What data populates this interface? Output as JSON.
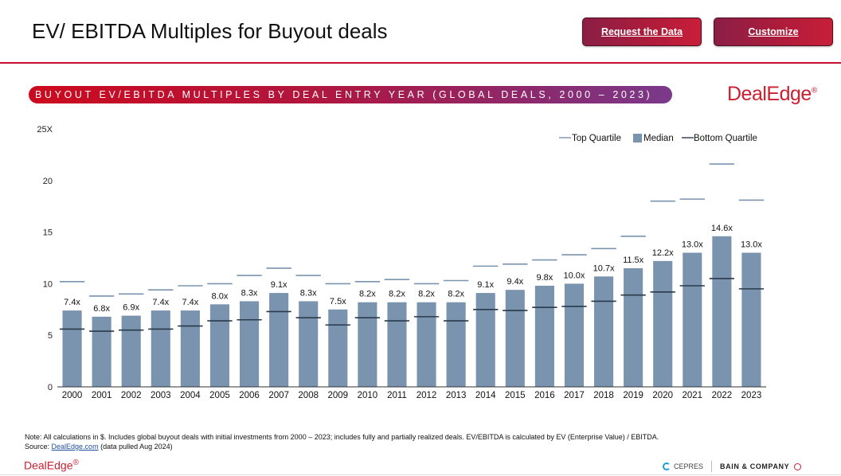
{
  "header": {
    "title": "EV/ EBITDA Multiples for Buyout deals",
    "request_label": "Request the Data",
    "customize_label": "Customize"
  },
  "banner": {
    "text": "BUYOUT EV/EBITDA MULTIPLES BY DEAL ENTRY YEAR (GLOBAL DEALS, 2000 – 2023)"
  },
  "brand": {
    "logo_text": "DealEdge",
    "logo_mark": "®"
  },
  "colors": {
    "bar": "#7a93ae",
    "quartile_top": "#7a93ae",
    "quartile_bottom": "#2b3a4a",
    "accent_red": "#c8102e"
  },
  "chart_data": {
    "type": "bar",
    "title": "BUYOUT EV/EBITDA MULTIPLES BY DEAL ENTRY YEAR (GLOBAL DEALS, 2000 – 2023)",
    "xlabel": "",
    "ylabel": "",
    "ylim": [
      0,
      25
    ],
    "y_ticks": [
      "0",
      "5",
      "10",
      "15",
      "20",
      "25X"
    ],
    "grid": false,
    "legend_position": "top-right",
    "categories": [
      "2000",
      "2001",
      "2002",
      "2003",
      "2004",
      "2005",
      "2006",
      "2007",
      "2008",
      "2009",
      "2010",
      "2011",
      "2012",
      "2013",
      "2014",
      "2015",
      "2016",
      "2017",
      "2018",
      "2019",
      "2020",
      "2021",
      "2022",
      "2023"
    ],
    "series": [
      {
        "name": "Top Quartile",
        "kind": "marker",
        "values": [
          10.2,
          8.8,
          9.0,
          9.4,
          9.8,
          10.0,
          10.8,
          11.5,
          10.8,
          10.0,
          10.2,
          10.4,
          10.0,
          10.3,
          11.7,
          11.9,
          12.3,
          12.8,
          13.4,
          14.6,
          18.0,
          18.2,
          21.6,
          18.1
        ]
      },
      {
        "name": "Median",
        "kind": "bar",
        "values": [
          7.4,
          6.8,
          6.9,
          7.4,
          7.4,
          8.0,
          8.3,
          9.1,
          8.3,
          7.5,
          8.2,
          8.2,
          8.2,
          8.2,
          9.1,
          9.4,
          9.8,
          10.0,
          10.7,
          11.5,
          12.2,
          13.0,
          14.6,
          13.0
        ],
        "labels": [
          "7.4x",
          "6.8x",
          "6.9x",
          "7.4x",
          "7.4x",
          "8.0x",
          "8.3x",
          "9.1x",
          "8.3x",
          "7.5x",
          "8.2x",
          "8.2x",
          "8.2x",
          "8.2x",
          "9.1x",
          "9.4x",
          "9.8x",
          "10.0x",
          "10.7x",
          "11.5x",
          "12.2x",
          "13.0x",
          "14.6x",
          "13.0x"
        ]
      },
      {
        "name": "Bottom Quartile",
        "kind": "marker",
        "values": [
          5.6,
          5.4,
          5.5,
          5.6,
          5.9,
          6.4,
          6.5,
          7.3,
          6.7,
          6.0,
          6.7,
          6.4,
          6.8,
          6.4,
          7.5,
          7.4,
          7.7,
          7.8,
          8.3,
          8.9,
          9.2,
          9.8,
          10.5,
          9.5
        ]
      }
    ]
  },
  "footer": {
    "note": "Note: All calculations in $. Includes global buyout deals with initial investments from 2000 – 2023; includes fully and partially realized deals. EV/EBITDA is calculated by EV (Enterprise Value) / EBITDA.",
    "source_prefix": "Source: ",
    "source_link": "DealEdge.com",
    "source_suffix": " (data pulled Aug 2024)",
    "logo_text": "DealEdge",
    "logo_mark": "®",
    "partner_cepres": "CEPRES",
    "partner_bain": "BAIN & COMPANY"
  }
}
